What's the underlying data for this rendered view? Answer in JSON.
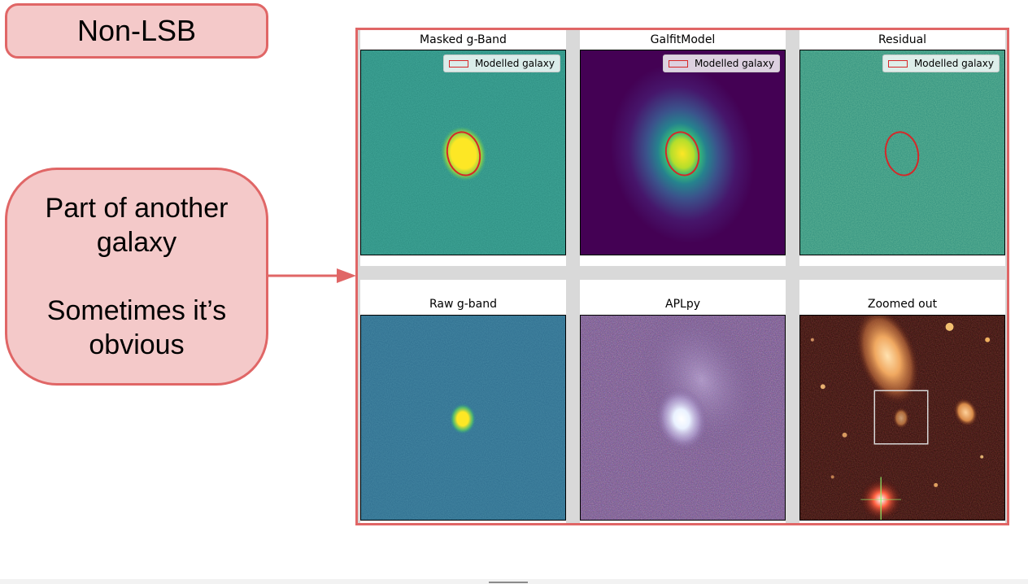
{
  "tag_label": "Non-LSB",
  "callout": {
    "line1": "Part of another",
    "line2": "galaxy",
    "line3": "Sometimes it’s",
    "line4": "obvious"
  },
  "colors": {
    "box_fill": "#f4c9c9",
    "box_border": "#e06666",
    "ellipse": "#d62728"
  },
  "panels": {
    "masked": {
      "title": "Masked g-Band",
      "legend": "Modelled galaxy"
    },
    "model": {
      "title": "GalfitModel",
      "legend": "Modelled galaxy"
    },
    "residual": {
      "title": "Residual",
      "legend": "Modelled galaxy"
    },
    "raw": {
      "title": "Raw g-band"
    },
    "aplpy": {
      "title": "APLpy"
    },
    "zoom": {
      "title": "Zoomed out"
    }
  }
}
